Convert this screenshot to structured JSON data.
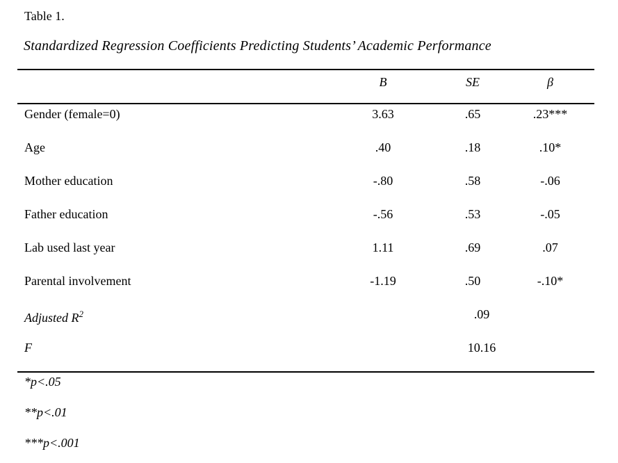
{
  "page": {
    "caption": "Table 1.",
    "subtitle": "Standardized Regression Coefficients Predicting Students’ Academic Performance"
  },
  "table": {
    "headers": {
      "label": "",
      "b": "B",
      "se": "SE",
      "beta": "β"
    },
    "rows": [
      {
        "label": "Gender (female=0)",
        "b": "3.63",
        "se": ".65",
        "beta": ".23***"
      },
      {
        "label": "Age",
        "b": ".40",
        "se": ".18",
        "beta": ".10*"
      },
      {
        "label": "Mother education",
        "b": "-.80",
        "se": ".58",
        "beta": "-.06"
      },
      {
        "label": "Father education",
        "b": "-.56",
        "se": ".53",
        "beta": "-.05"
      },
      {
        "label": "Lab used last year",
        "b": "1.11",
        "se": ".69",
        "beta": ".07"
      },
      {
        "label": "Parental involvement",
        "b": "-1.19",
        "se": ".50",
        "beta": "-.10*"
      }
    ],
    "summary_rows": [
      {
        "label": "Adjusted R",
        "label_sup": "2",
        "value": ".09"
      },
      {
        "label": "F",
        "label_sup": "",
        "value": "10.16"
      }
    ],
    "notes": [
      "*p<.05",
      "**p<.01",
      "***p<.001"
    ]
  },
  "colors": {
    "background": "#ffffff",
    "text": "#000000",
    "rule": "#000000"
  }
}
